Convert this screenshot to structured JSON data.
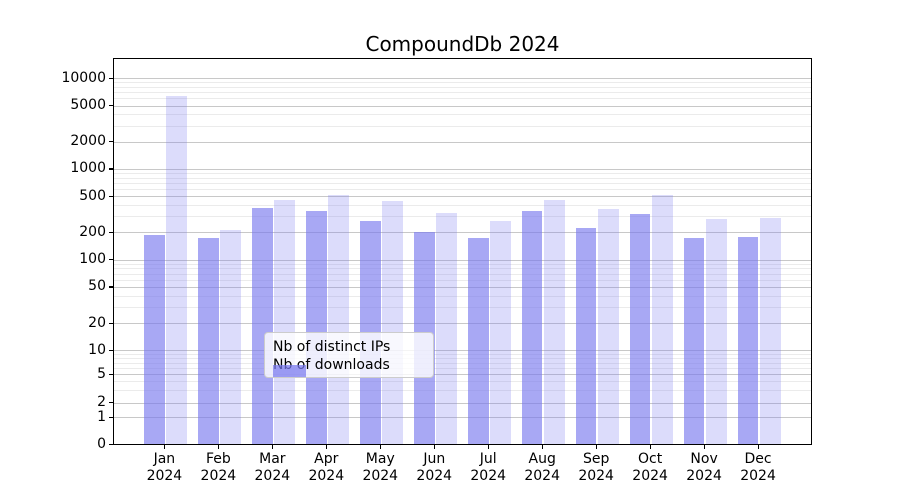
{
  "title": "CompoundDb 2024",
  "legend": {
    "entries": [
      {
        "label": "Nb of distinct IPs",
        "style": "dark"
      },
      {
        "label": "Nb of downloads",
        "style": "light"
      }
    ]
  },
  "colors": {
    "bar_base": "#7777ee",
    "bar_ips_rendered": "#a8a8f5",
    "bar_downloads_rendered": "#d9d9f9",
    "grid_major": "#c8c8c8",
    "grid_minor": "#ebebeb",
    "axis": "#000000"
  },
  "chart_data": {
    "type": "bar",
    "title": "CompoundDb 2024",
    "categories": [
      "Jan 2024",
      "Feb 2024",
      "Mar 2024",
      "Apr 2024",
      "May 2024",
      "Jun 2024",
      "Jul 2024",
      "Aug 2024",
      "Sep 2024",
      "Oct 2024",
      "Nov 2024",
      "Dec 2024"
    ],
    "series": [
      {
        "name": "Nb of distinct IPs",
        "values": [
          185,
          175,
          375,
          340,
          270,
          200,
          175,
          340,
          225,
          315,
          175,
          180
        ]
      },
      {
        "name": "Nb of downloads",
        "values": [
          6300,
          210,
          450,
          510,
          445,
          325,
          270,
          455,
          365,
          520,
          280,
          290
        ]
      }
    ],
    "xlabel": "",
    "ylabel": "",
    "yscale": "symlog",
    "ylim": [
      0,
      16000
    ],
    "ytick_labels": [
      "0",
      "1",
      "2",
      "5",
      "10",
      "20",
      "50",
      "100",
      "200",
      "500",
      "1000",
      "2000",
      "5000",
      "10000"
    ],
    "ytick_values": [
      0,
      1,
      2,
      5,
      10,
      20,
      50,
      100,
      200,
      500,
      1000,
      2000,
      5000,
      10000
    ],
    "grid": true,
    "legend_position": "lower center"
  }
}
